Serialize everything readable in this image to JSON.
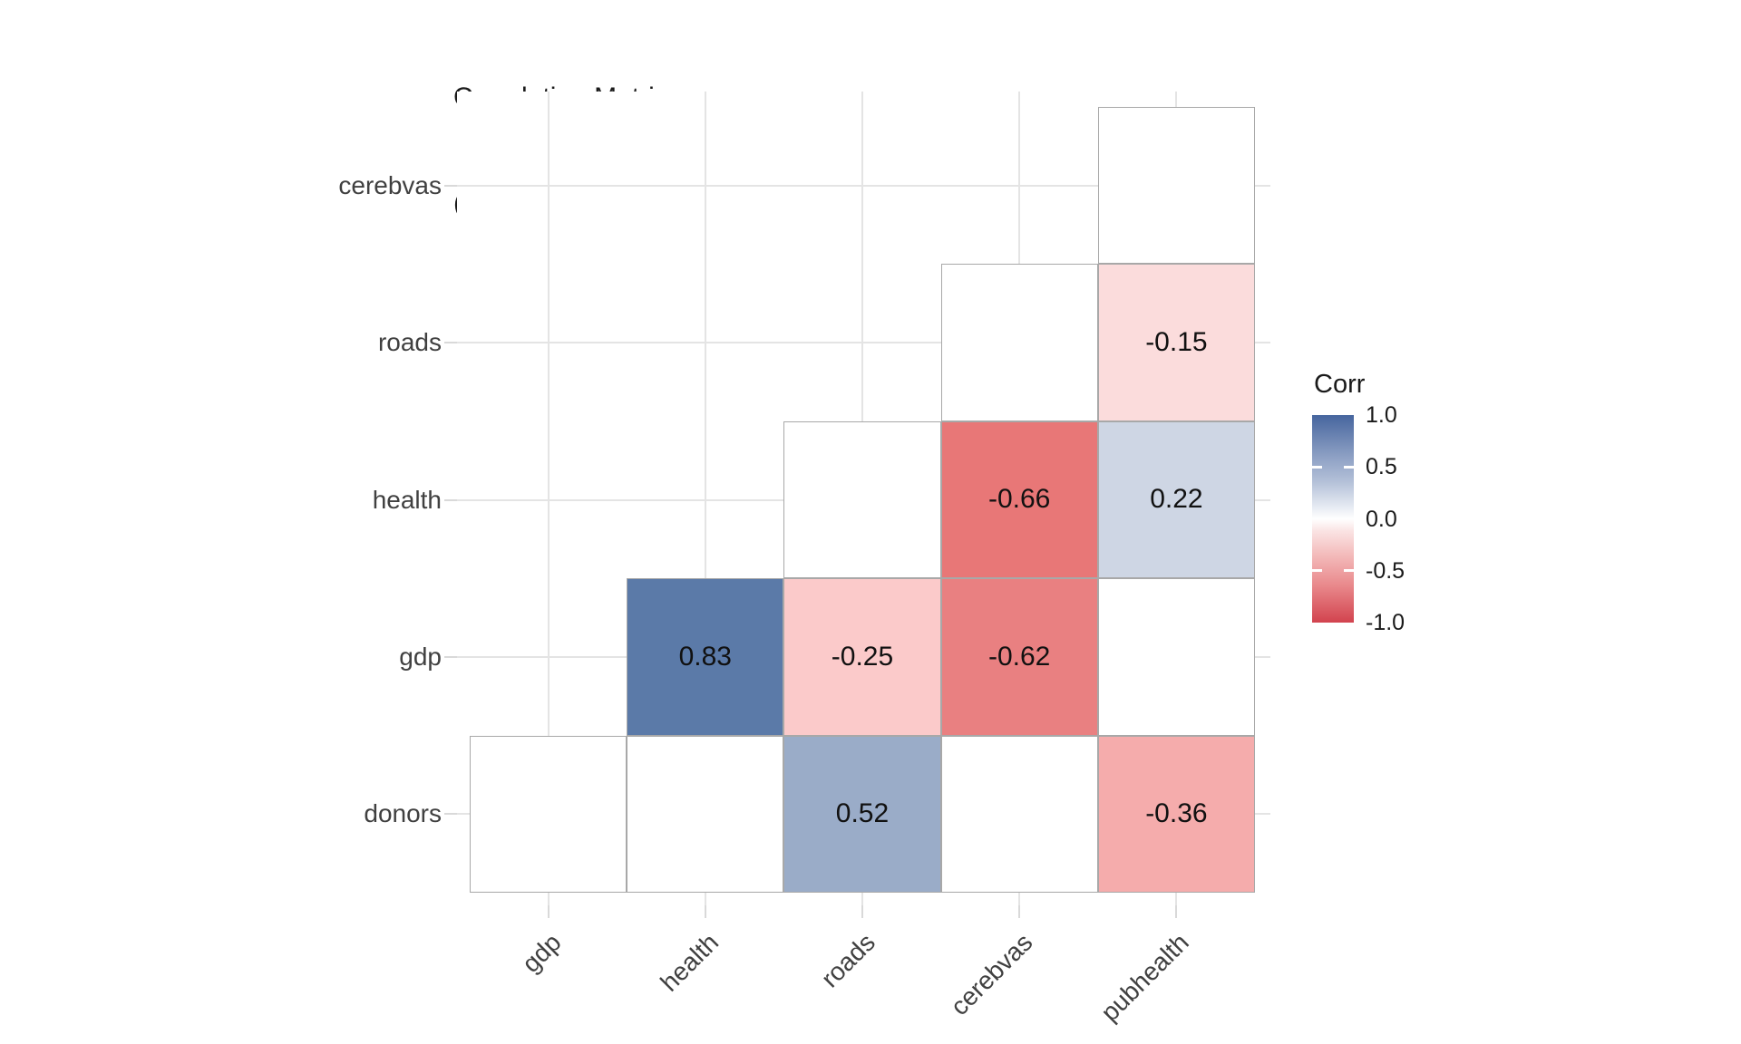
{
  "title": {
    "line1": "Correlation Matrix",
    "line2": "(Insignificant cells blanked)"
  },
  "axes": {
    "x_labels": [
      "gdp",
      "health",
      "roads",
      "cerebvas",
      "pubhealth"
    ],
    "y_labels_top_to_bottom": [
      "cerebvas",
      "roads",
      "health",
      "gdp",
      "donors"
    ]
  },
  "legend": {
    "title": "Corr",
    "ticks": [
      {
        "label": "1.0",
        "value": 1.0
      },
      {
        "label": "0.5",
        "value": 0.5
      },
      {
        "label": "0.0",
        "value": 0.0
      },
      {
        "label": "-0.5",
        "value": -0.5
      },
      {
        "label": "-1.0",
        "value": -1.0
      }
    ],
    "gradient_stops": [
      [
        "0%",
        "#46659E"
      ],
      [
        "20%",
        "#8DA0C4"
      ],
      [
        "32%",
        "#B3C0D8"
      ],
      [
        "45%",
        "#E9EDF4"
      ],
      [
        "50%",
        "#FFFFFF"
      ],
      [
        "56%",
        "#FAE3E3"
      ],
      [
        "68%",
        "#F3B9B9"
      ],
      [
        "82%",
        "#E9898C"
      ],
      [
        "100%",
        "#D2434E"
      ]
    ]
  },
  "style_colors": {
    "grid": "#E4E4E4",
    "cell_border": "#A8A8A8",
    "axis_tick": "#D9D9D9",
    "axis_text": "#404040",
    "value_text": "#111111",
    "high_blue": "#46659E",
    "low_red": "#D2434E"
  },
  "chart_data": {
    "type": "heatmap",
    "title": "Correlation Matrix (Insignificant cells blanked)",
    "x_categories": [
      "gdp",
      "health",
      "roads",
      "cerebvas",
      "pubhealth"
    ],
    "y_categories_top_to_bottom": [
      "cerebvas",
      "roads",
      "health",
      "gdp",
      "donors"
    ],
    "value_range": [
      -1,
      1
    ],
    "legend_title": "Corr",
    "grid": "on",
    "legend_position": "right",
    "cells": [
      {
        "row": "cerebvas",
        "col": "pubhealth",
        "value": null,
        "label": "",
        "color": "#FFFFFF"
      },
      {
        "row": "roads",
        "col": "cerebvas",
        "value": null,
        "label": "",
        "color": "#FFFFFF"
      },
      {
        "row": "roads",
        "col": "pubhealth",
        "value": -0.15,
        "label": "-0.15",
        "color": "#FBDCDC"
      },
      {
        "row": "health",
        "col": "roads",
        "value": null,
        "label": "",
        "color": "#FFFFFF"
      },
      {
        "row": "health",
        "col": "cerebvas",
        "value": -0.66,
        "label": "-0.66",
        "color": "#E87777"
      },
      {
        "row": "health",
        "col": "pubhealth",
        "value": 0.22,
        "label": "0.22",
        "color": "#CED6E4"
      },
      {
        "row": "gdp",
        "col": "health",
        "value": 0.83,
        "label": "0.83",
        "color": "#5B7AA8"
      },
      {
        "row": "gdp",
        "col": "roads",
        "value": -0.25,
        "label": "-0.25",
        "color": "#FBCACA"
      },
      {
        "row": "gdp",
        "col": "cerebvas",
        "value": -0.62,
        "label": "-0.62",
        "color": "#E98081"
      },
      {
        "row": "gdp",
        "col": "pubhealth",
        "value": null,
        "label": "",
        "color": "#FFFFFF"
      },
      {
        "row": "donors",
        "col": "gdp",
        "value": null,
        "label": "",
        "color": "#FFFFFF"
      },
      {
        "row": "donors",
        "col": "health",
        "value": null,
        "label": "",
        "color": "#FFFFFF"
      },
      {
        "row": "donors",
        "col": "roads",
        "value": 0.52,
        "label": "0.52",
        "color": "#9AACC8"
      },
      {
        "row": "donors",
        "col": "cerebvas",
        "value": null,
        "label": "",
        "color": "#FFFFFF"
      },
      {
        "row": "donors",
        "col": "pubhealth",
        "value": -0.36,
        "label": "-0.36",
        "color": "#F5ACAC"
      }
    ]
  }
}
